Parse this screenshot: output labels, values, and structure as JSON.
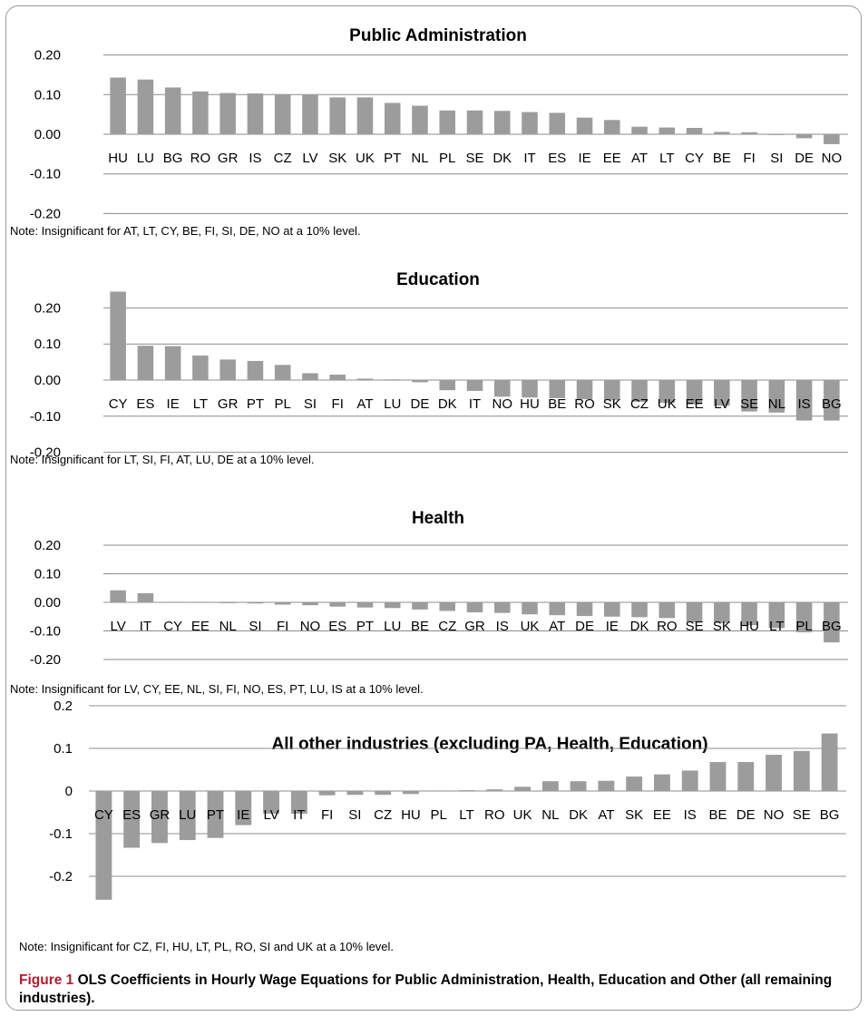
{
  "colors": {
    "bar": "#9c9c9c",
    "grid": "#8c8c8c",
    "caption_accent": "#b01e2e"
  },
  "chart_data": [
    {
      "type": "bar",
      "title": "Public Administration",
      "xlabel": "",
      "ylabel": "",
      "ylim": [
        -0.2,
        0.2
      ],
      "yticks": [
        "0.20",
        "0.10",
        "0.00",
        "-0.10",
        "-0.20"
      ],
      "grid": true,
      "categories": [
        "HU",
        "LU",
        "BG",
        "RO",
        "GR",
        "IS",
        "CZ",
        "LV",
        "SK",
        "UK",
        "PT",
        "NL",
        "PL",
        "SE",
        "DK",
        "IT",
        "ES",
        "IE",
        "EE",
        "AT",
        "LT",
        "CY",
        "BE",
        "FI",
        "SI",
        "DE",
        "NO"
      ],
      "values": [
        0.143,
        0.138,
        0.118,
        0.108,
        0.104,
        0.103,
        0.101,
        0.099,
        0.093,
        0.093,
        0.079,
        0.072,
        0.06,
        0.06,
        0.059,
        0.056,
        0.054,
        0.042,
        0.036,
        0.019,
        0.017,
        0.016,
        0.006,
        0.005,
        -0.002,
        -0.01,
        -0.025
      ],
      "note": "Note: Insignificant for AT, LT, CY, BE, FI, SI, DE, NO at a 10% level."
    },
    {
      "type": "bar",
      "title": "Education",
      "xlabel": "",
      "ylabel": "",
      "ylim": [
        -0.2,
        0.2
      ],
      "yticks": [
        "0.20",
        "0.10",
        "0.00",
        "-0.10",
        "-0.20"
      ],
      "grid": true,
      "categories": [
        "CY",
        "ES",
        "IE",
        "LT",
        "GR",
        "PT",
        "PL",
        "SI",
        "FI",
        "AT",
        "LU",
        "DE",
        "DK",
        "IT",
        "NO",
        "HU",
        "BE",
        "RO",
        "SK",
        "CZ",
        "UK",
        "EE",
        "LV",
        "SE",
        "NL",
        "IS",
        "BG"
      ],
      "values": [
        0.245,
        0.095,
        0.094,
        0.068,
        0.057,
        0.053,
        0.042,
        0.019,
        0.015,
        0.004,
        0.002,
        -0.006,
        -0.028,
        -0.03,
        -0.046,
        -0.048,
        -0.05,
        -0.053,
        -0.056,
        -0.06,
        -0.063,
        -0.067,
        -0.071,
        -0.087,
        -0.09,
        -0.112,
        -0.112
      ],
      "note": "Note: Insignificant for LT, SI, FI, AT, LU, DE at a 10% level."
    },
    {
      "type": "bar",
      "title": "Health",
      "xlabel": "",
      "ylabel": "",
      "ylim": [
        -0.2,
        0.2
      ],
      "yticks": [
        "0.20",
        "0.10",
        "0.00",
        "-0.10",
        "-0.20"
      ],
      "grid": true,
      "categories": [
        "LV",
        "IT",
        "CY",
        "EE",
        "NL",
        "SI",
        "FI",
        "NO",
        "ES",
        "PT",
        "LU",
        "BE",
        "CZ",
        "GR",
        "IS",
        "UK",
        "AT",
        "DE",
        "IE",
        "DK",
        "RO",
        "SE",
        "SK",
        "HU",
        "LT",
        "PL",
        "BG"
      ],
      "values": [
        0.042,
        0.032,
        -0.001,
        -0.002,
        -0.003,
        -0.004,
        -0.008,
        -0.01,
        -0.015,
        -0.018,
        -0.02,
        -0.025,
        -0.03,
        -0.035,
        -0.037,
        -0.042,
        -0.045,
        -0.048,
        -0.05,
        -0.052,
        -0.055,
        -0.07,
        -0.072,
        -0.08,
        -0.09,
        -0.105,
        -0.14
      ],
      "note": "Note: Insignificant for LV, CY, EE, NL, SI, FI, NO, ES, PT, LU, IS  at a 10% level."
    },
    {
      "type": "bar",
      "title": "All other industries (excluding PA, Health, Education)",
      "xlabel": "",
      "ylabel": "",
      "ylim": [
        -0.3,
        0.2
      ],
      "yticks": [
        "0.2",
        "0.1",
        "0",
        "-0.1",
        "-0.2"
      ],
      "grid": true,
      "categories": [
        "CY",
        "ES",
        "GR",
        "LU",
        "PT",
        "IE",
        "LV",
        "IT",
        "FI",
        "SI",
        "CZ",
        "HU",
        "PL",
        "LT",
        "RO",
        "UK",
        "NL",
        "DK",
        "AT",
        "SK",
        "EE",
        "IS",
        "BE",
        "DE",
        "NO",
        "SE",
        "BG"
      ],
      "values": [
        -0.255,
        -0.133,
        -0.122,
        -0.115,
        -0.11,
        -0.08,
        -0.053,
        -0.053,
        -0.01,
        -0.009,
        -0.009,
        -0.007,
        -0.001,
        0.002,
        0.004,
        0.01,
        0.023,
        0.023,
        0.024,
        0.034,
        0.039,
        0.048,
        0.068,
        0.068,
        0.085,
        0.094,
        0.135
      ],
      "note": "Note: Insignificant for CZ, FI, HU, LT, PL, RO, SI and UK at a 10% level."
    }
  ],
  "caption": {
    "number": "Figure 1",
    "text": " OLS Coefficients in Hourly Wage Equations for Public Administration, Health, Education and Other (all remaining industries)."
  }
}
